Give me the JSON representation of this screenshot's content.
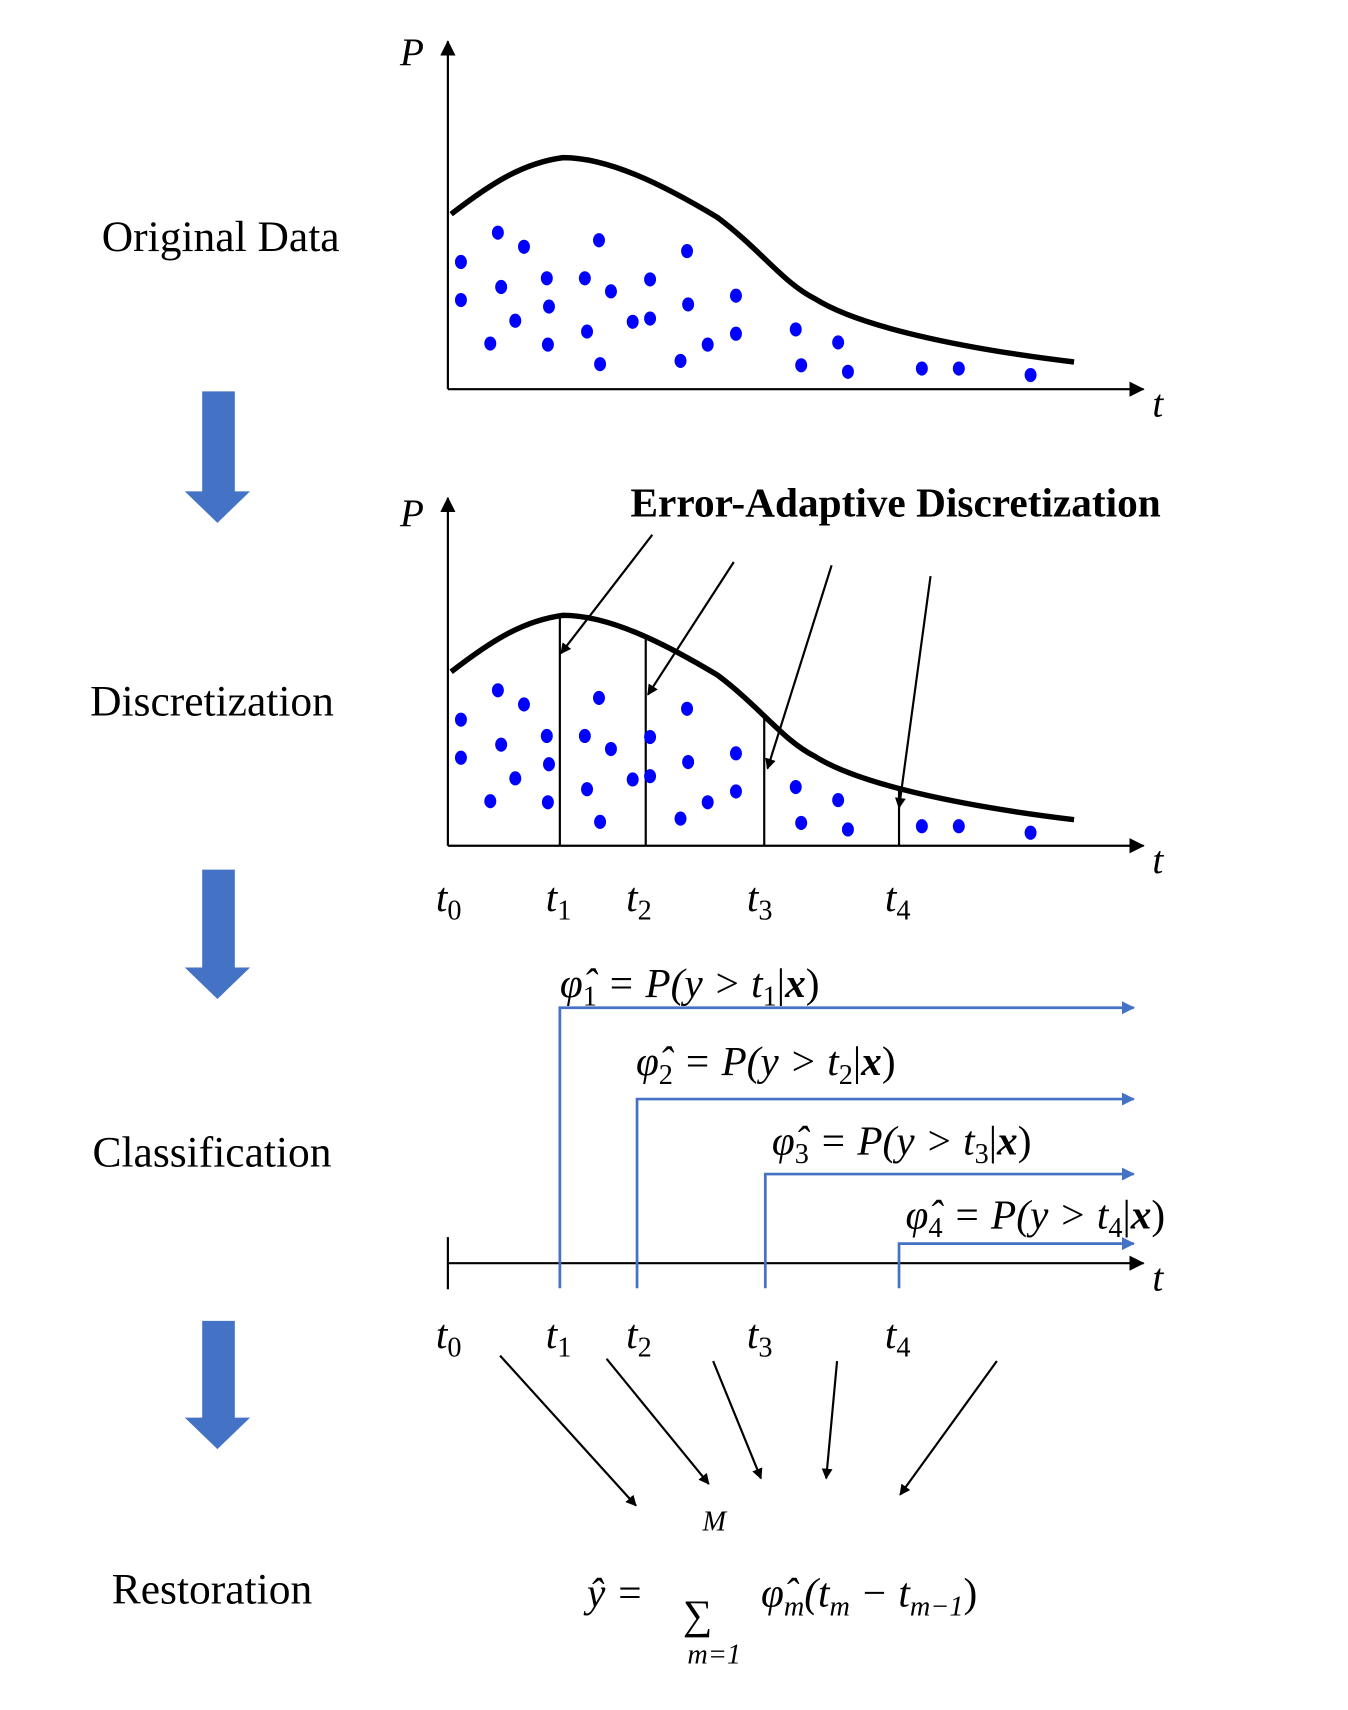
{
  "colors": {
    "flow_arrow": "#4472C4",
    "dots": "#0000FF",
    "step_lines": "#4472C4",
    "curve": "#000000"
  },
  "stages": [
    "Original Data",
    "Discretization",
    "Classification",
    "Restoration"
  ],
  "axes": {
    "y_label": "P",
    "x_label": "t"
  },
  "discretization_title": "Error-Adaptive Discretization",
  "ticks": [
    {
      "base": "t",
      "sub": "0"
    },
    {
      "base": "t",
      "sub": "1"
    },
    {
      "base": "t",
      "sub": "2"
    },
    {
      "base": "t",
      "sub": "3"
    },
    {
      "base": "t",
      "sub": "4"
    }
  ],
  "classifiers": [
    {
      "phi": "φ̂",
      "idx": "1",
      "mid": " = P(y > t",
      "idx2": "1",
      "x": "x",
      "end": ")"
    },
    {
      "phi": "φ̂",
      "idx": "2",
      "mid": " = P(y > t",
      "idx2": "2",
      "x": "x",
      "end": ")"
    },
    {
      "phi": "φ̂",
      "idx": "3",
      "mid": " = P(y > t",
      "idx2": "3",
      "x": "x",
      "end": ")"
    },
    {
      "phi": "φ̂",
      "idx": "4",
      "mid": " = P(y > t",
      "idx2": "4",
      "x": "x",
      "end": ")"
    }
  ],
  "restoration": {
    "lhs": "ŷ = ",
    "sigma": "∑",
    "upper": "M",
    "lower": "m=1",
    "phi": "φ̂",
    "phi_sub": "m",
    "open": "(t",
    "s1": "m",
    "minus": " − t",
    "s2": "m−1",
    "close": ")"
  }
}
